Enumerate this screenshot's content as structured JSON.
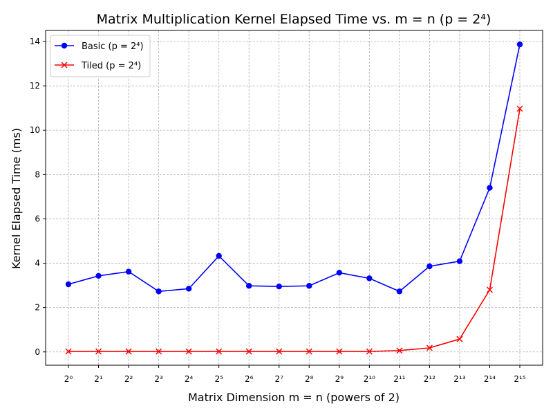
{
  "chart_data": {
    "type": "line",
    "title": "Matrix Multiplication Kernel Elapsed Time vs. m = n (p = 2⁴)",
    "xlabel": "Matrix Dimension m = n (powers of 2)",
    "ylabel": "Kernel Elapsed Time (ms)",
    "categories": [
      "2⁰",
      "2¹",
      "2²",
      "2³",
      "2⁴",
      "2⁵",
      "2⁶",
      "2⁷",
      "2⁸",
      "2⁹",
      "2¹⁰",
      "2¹¹",
      "2¹²",
      "2¹³",
      "2¹⁴",
      "2¹⁵"
    ],
    "ylim": [
      -0.6,
      14.5
    ],
    "yticks": [
      0,
      2,
      4,
      6,
      8,
      10,
      12,
      14
    ],
    "grid": true,
    "legend_position": "top-left",
    "series": [
      {
        "name": "Basic (p = 2⁴)",
        "color": "#0000ff",
        "marker": "circle",
        "values": [
          3.05,
          3.43,
          3.62,
          2.73,
          2.85,
          4.33,
          2.98,
          2.95,
          2.98,
          3.57,
          3.32,
          2.73,
          3.86,
          4.09,
          7.4,
          13.87
        ]
      },
      {
        "name": "Tiled (p = 2⁴)",
        "color": "#ff0000",
        "marker": "x",
        "values": [
          0.02,
          0.02,
          0.02,
          0.02,
          0.02,
          0.02,
          0.02,
          0.02,
          0.02,
          0.02,
          0.02,
          0.06,
          0.18,
          0.58,
          2.8,
          10.97
        ]
      }
    ]
  }
}
